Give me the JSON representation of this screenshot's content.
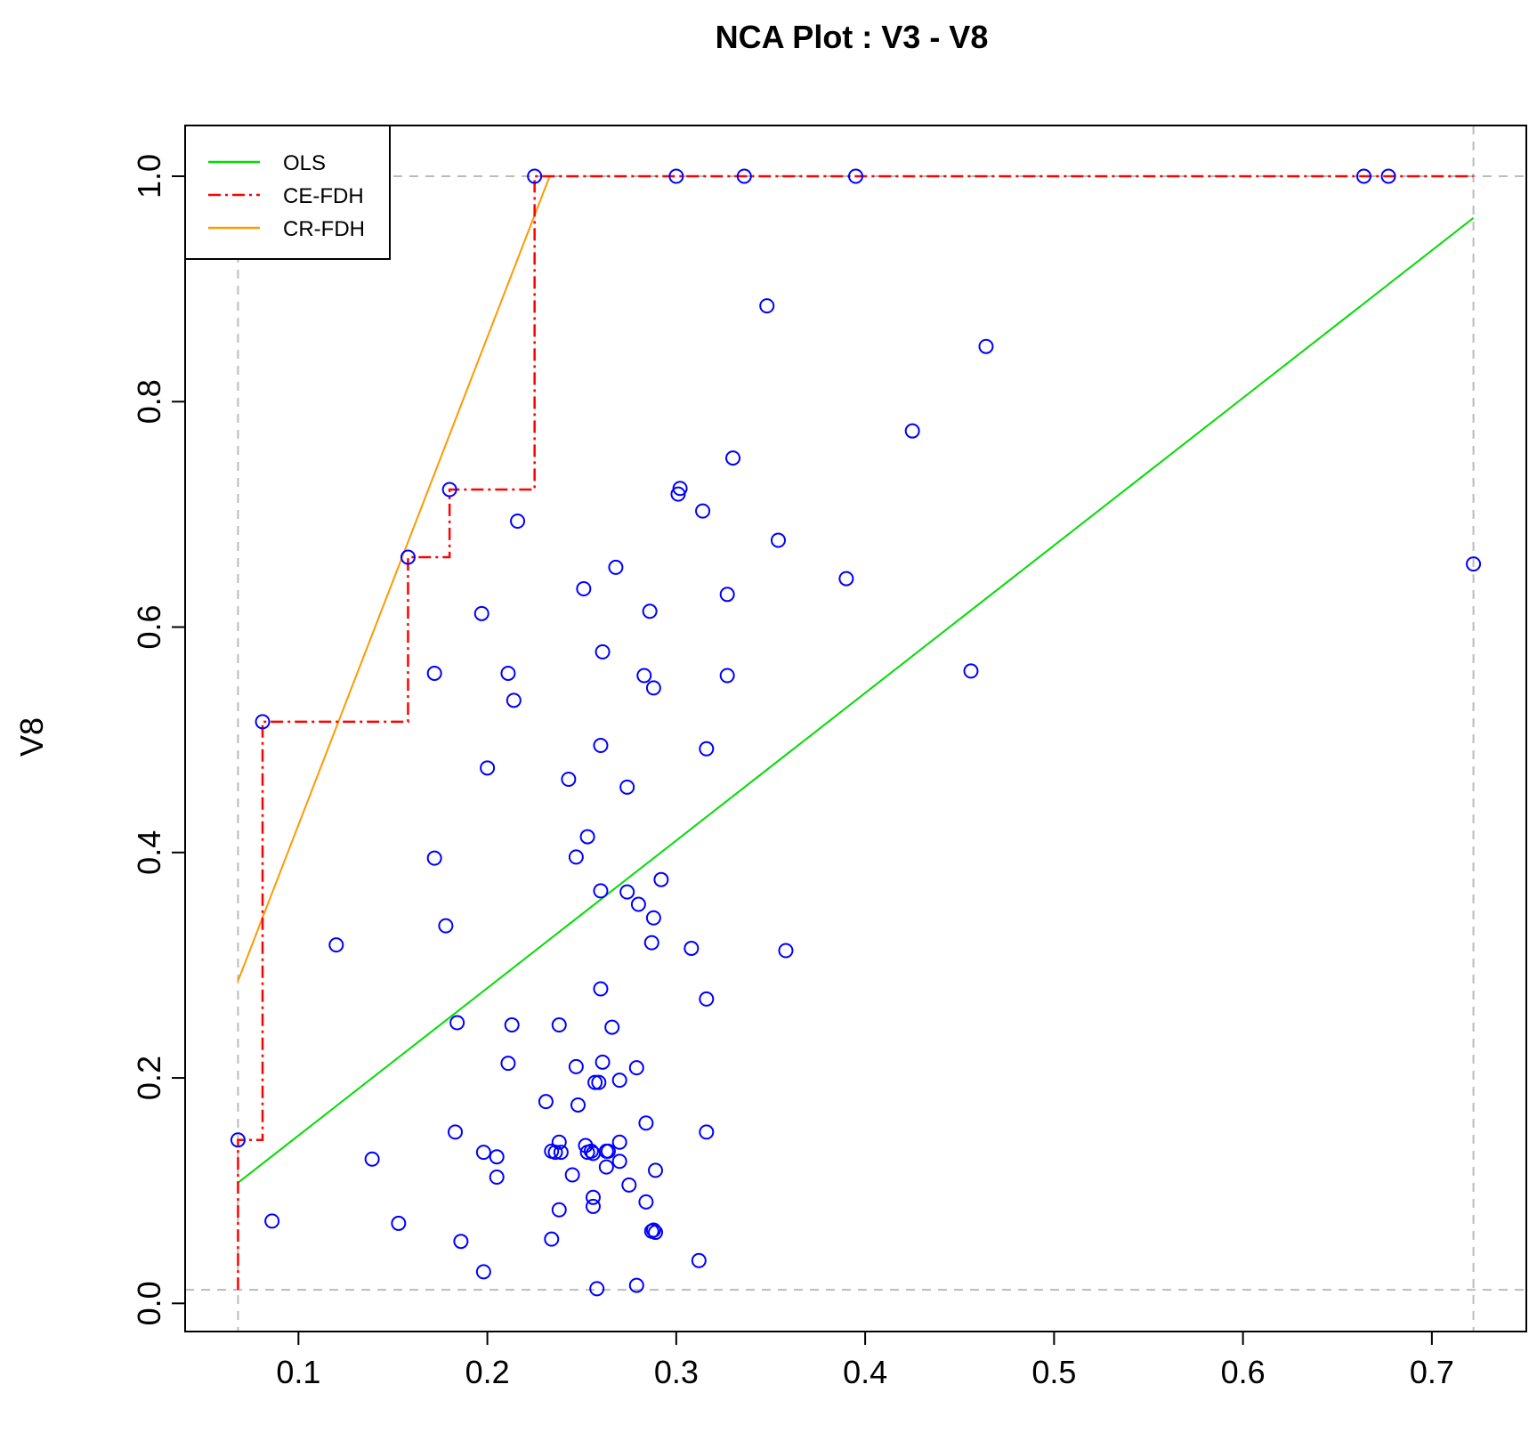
{
  "chart_data": {
    "type": "scatter",
    "title": "NCA Plot : V3 - V8",
    "xlabel": "",
    "ylabel": "V8",
    "xlim": [
      0.04,
      0.75
    ],
    "ylim": [
      -0.025,
      1.045
    ],
    "x_ticks": [
      0.1,
      0.2,
      0.3,
      0.4,
      0.5,
      0.6,
      0.7
    ],
    "x_tick_labels": [
      "0.1",
      "0.2",
      "0.3",
      "0.4",
      "0.5",
      "0.6",
      "0.7"
    ],
    "y_ticks": [
      0.0,
      0.2,
      0.4,
      0.6,
      0.8,
      1.0
    ],
    "y_tick_labels": [
      "0.0",
      "0.2",
      "0.4",
      "0.6",
      "0.8",
      "1.0"
    ],
    "scope_bounds": {
      "x_min": 0.068,
      "x_max": 0.722,
      "y_min": 0.012,
      "y_max": 1.0
    },
    "legend": {
      "position": "top-left",
      "entries": [
        {
          "label": "OLS",
          "color": "#00dd00",
          "style": "solid"
        },
        {
          "label": "CE-FDH",
          "color": "#ff0000",
          "style": "dashdot"
        },
        {
          "label": "CR-FDH",
          "color": "#ff9900",
          "style": "solid"
        }
      ]
    },
    "colors": {
      "points": "#0000ff",
      "ols": "#00dd00",
      "ce_fdh": "#ff0000",
      "cr_fdh": "#ff9900",
      "scope": "#bbbbbb",
      "axes": "#000000"
    },
    "points": {
      "x": [
        0.068,
        0.081,
        0.086,
        0.12,
        0.139,
        0.153,
        0.158,
        0.172,
        0.172,
        0.178,
        0.18,
        0.183,
        0.184,
        0.186,
        0.197,
        0.198,
        0.198,
        0.2,
        0.205,
        0.205,
        0.211,
        0.211,
        0.213,
        0.214,
        0.216,
        0.225,
        0.231,
        0.234,
        0.234,
        0.236,
        0.238,
        0.238,
        0.238,
        0.239,
        0.243,
        0.245,
        0.247,
        0.247,
        0.248,
        0.251,
        0.252,
        0.253,
        0.253,
        0.255,
        0.256,
        0.256,
        0.256,
        0.257,
        0.258,
        0.259,
        0.26,
        0.26,
        0.26,
        0.261,
        0.261,
        0.263,
        0.263,
        0.264,
        0.266,
        0.268,
        0.27,
        0.27,
        0.27,
        0.274,
        0.274,
        0.275,
        0.279,
        0.279,
        0.28,
        0.283,
        0.284,
        0.284,
        0.286,
        0.287,
        0.287,
        0.288,
        0.288,
        0.288,
        0.289,
        0.289,
        0.292,
        0.3,
        0.301,
        0.302,
        0.308,
        0.312,
        0.314,
        0.316,
        0.316,
        0.316,
        0.327,
        0.327,
        0.33,
        0.336,
        0.348,
        0.354,
        0.358,
        0.39,
        0.395,
        0.425,
        0.456,
        0.464,
        0.664,
        0.677,
        0.722
      ],
      "y": [
        0.145,
        0.516,
        0.073,
        0.318,
        0.128,
        0.071,
        0.662,
        0.395,
        0.559,
        0.335,
        0.722,
        0.152,
        0.249,
        0.055,
        0.612,
        0.134,
        0.028,
        0.475,
        0.13,
        0.112,
        0.213,
        0.559,
        0.247,
        0.535,
        0.694,
        1.0,
        0.179,
        0.135,
        0.057,
        0.134,
        0.247,
        0.083,
        0.143,
        0.134,
        0.465,
        0.114,
        0.396,
        0.21,
        0.176,
        0.634,
        0.14,
        0.414,
        0.134,
        0.135,
        0.094,
        0.133,
        0.086,
        0.196,
        0.013,
        0.196,
        0.495,
        0.279,
        0.366,
        0.214,
        0.578,
        0.121,
        0.135,
        0.135,
        0.245,
        0.653,
        0.198,
        0.143,
        0.126,
        0.458,
        0.365,
        0.105,
        0.209,
        0.016,
        0.354,
        0.557,
        0.16,
        0.09,
        0.614,
        0.32,
        0.064,
        0.546,
        0.342,
        0.065,
        0.118,
        0.063,
        0.376,
        1.0,
        0.718,
        0.723,
        0.315,
        0.038,
        0.703,
        0.492,
        0.27,
        0.152,
        0.629,
        0.557,
        0.75,
        1.0,
        0.885,
        0.677,
        0.313,
        0.643,
        1.0,
        0.774,
        0.561,
        0.849,
        1.0,
        1.0,
        0.656
      ]
    },
    "lines": {
      "ols": {
        "x": [
          0.068,
          0.722
        ],
        "y": [
          0.107,
          0.963
        ]
      },
      "cr_fdh": {
        "x": [
          0.068,
          0.233
        ],
        "y": [
          0.286,
          1.0
        ]
      },
      "ce_fdh": {
        "x": [
          0.068,
          0.068,
          0.081,
          0.081,
          0.158,
          0.158,
          0.18,
          0.18,
          0.225,
          0.225,
          0.722
        ],
        "y": [
          0.012,
          0.145,
          0.145,
          0.516,
          0.516,
          0.662,
          0.662,
          0.722,
          0.722,
          1.0,
          1.0
        ]
      }
    }
  }
}
